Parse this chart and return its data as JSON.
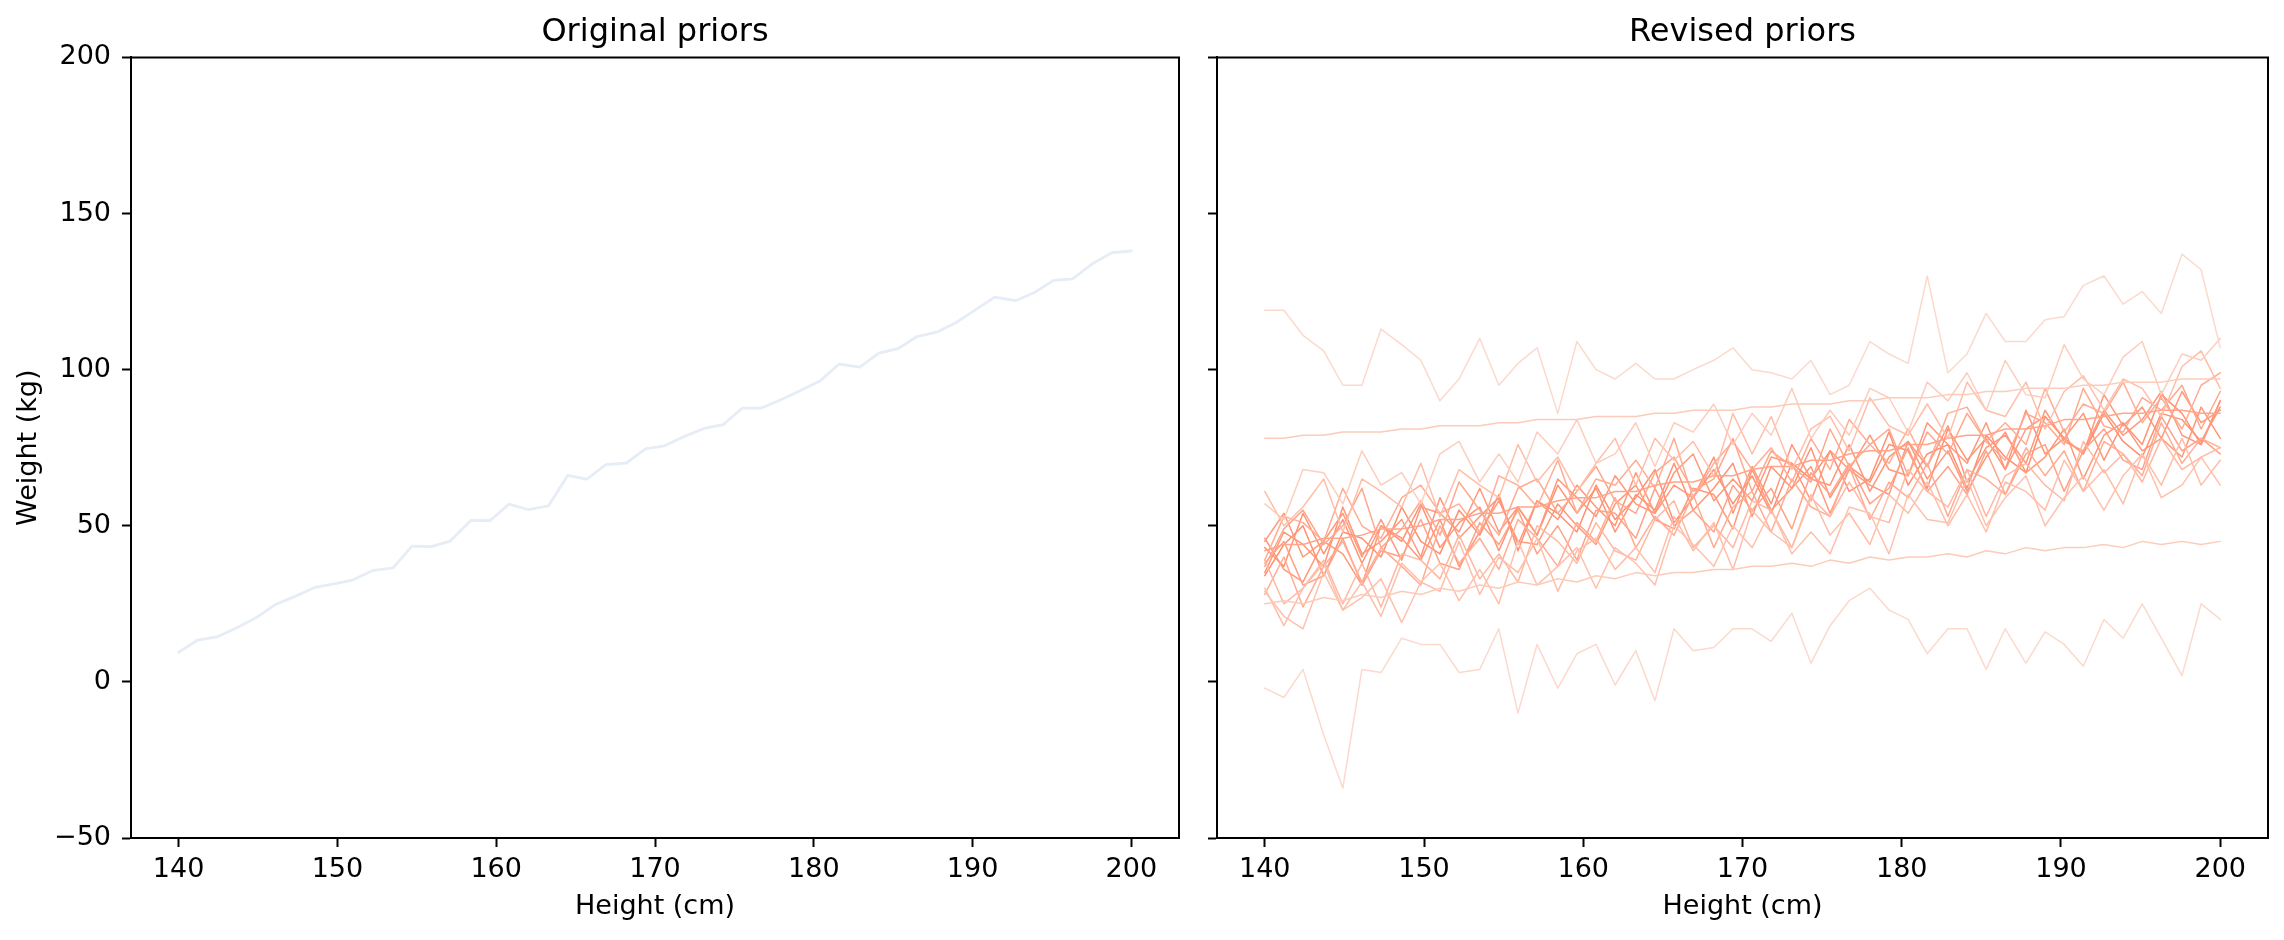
{
  "chart_data": [
    {
      "type": "line",
      "title": "Original priors",
      "xlabel": "Height (cm)",
      "ylabel": "Weight (kg)",
      "x": [
        140,
        141.2,
        142.4,
        143.7,
        144.9,
        146.1,
        147.3,
        148.6,
        149.8,
        151.0,
        152.2,
        153.5,
        154.7,
        155.9,
        157.1,
        158.4,
        159.6,
        160.8,
        162.0,
        163.3,
        164.5,
        165.7,
        166.9,
        168.2,
        169.4,
        170.6,
        171.8,
        173.1,
        174.3,
        175.5,
        176.7,
        178.0,
        179.2,
        180.4,
        181.6,
        182.9,
        184.1,
        185.3,
        186.5,
        187.8,
        189.0,
        190.2,
        191.4,
        192.7,
        193.9,
        195.1,
        196.3,
        197.6,
        198.8,
        200
      ],
      "xlim": [
        137,
        203
      ],
      "ylim": [
        -50,
        200
      ],
      "xticks": [
        140,
        150,
        160,
        170,
        180,
        190,
        200
      ],
      "yticks": [
        {
          "value": -50,
          "label": "−50"
        },
        0,
        50,
        100,
        150,
        200
      ],
      "series": [
        {
          "color": "#e6edf6",
          "values": [
            9.5,
            13.4,
            14.4,
            17.4,
            20.6,
            24.8,
            27.3,
            30.3,
            31.4,
            32.7,
            35.6,
            36.5,
            43.5,
            43.3,
            45.1,
            51.7,
            51.6,
            56.9,
            55.2,
            56.4,
            66.1,
            64.9,
            69.6,
            70.1,
            74.6,
            75.6,
            78.5,
            81.2,
            82.4,
            87.7,
            87.7,
            90.5,
            93.4,
            96.4,
            101.8,
            100.8,
            105.3,
            106.7,
            110.6,
            112.1,
            115.2,
            119.2,
            123.2,
            122.1,
            124.7,
            128.6,
            129.1,
            134.1,
            137.5,
            138.0
          ]
        }
      ]
    },
    {
      "type": "line",
      "title": "Revised priors",
      "xlabel": "Height (cm)",
      "x": [
        140,
        141.2,
        142.4,
        143.7,
        144.9,
        146.1,
        147.3,
        148.6,
        149.8,
        151.0,
        152.2,
        153.5,
        154.7,
        155.9,
        157.1,
        158.4,
        159.6,
        160.8,
        162.0,
        163.3,
        164.5,
        165.7,
        166.9,
        168.2,
        169.4,
        170.6,
        171.8,
        173.1,
        174.3,
        175.5,
        176.7,
        178.0,
        179.2,
        180.4,
        181.6,
        182.9,
        184.1,
        185.3,
        186.5,
        187.8,
        189.0,
        190.2,
        191.4,
        192.7,
        193.9,
        195.1,
        196.3,
        197.6,
        198.8,
        200
      ],
      "xlim": [
        137,
        203
      ],
      "ylim": [
        -50,
        200
      ],
      "xticks": [
        140,
        150,
        160,
        170,
        180,
        190,
        200
      ],
      "yticks": [
        -50,
        0,
        50,
        100,
        150,
        200
      ],
      "tick_labels": "x",
      "series": [
        {
          "color": "#fcd9cd",
          "values": [
            119,
            119,
            111,
            106,
            95,
            95,
            113,
            108,
            103,
            90,
            97,
            110,
            95,
            102,
            107,
            86,
            109,
            100,
            97,
            102,
            97,
            97,
            100,
            103,
            107,
            100,
            99,
            97,
            103,
            92,
            95,
            109,
            105,
            102,
            130,
            99,
            105,
            118,
            109,
            109,
            116,
            117,
            127,
            130,
            121,
            125,
            118,
            137,
            132,
            107
          ]
        },
        {
          "color": "#fcd9cd",
          "values": [
            -2,
            -5,
            4,
            -17,
            -34,
            4,
            3,
            14,
            12,
            12,
            3,
            4,
            17,
            -10,
            12,
            -2,
            9,
            12,
            -1,
            10,
            -6,
            17,
            10,
            11,
            17,
            17,
            13,
            22,
            6,
            18,
            26,
            30,
            23,
            20,
            9,
            17,
            17,
            4,
            17,
            6,
            16,
            12,
            5,
            20,
            14,
            25,
            14,
            2,
            25,
            20
          ]
        },
        {
          "color": "#fccbb9",
          "values": [
            78,
            78,
            79,
            79,
            80,
            80,
            80,
            81,
            81,
            82,
            82,
            82,
            83,
            83,
            84,
            84,
            84,
            85,
            85,
            85,
            86,
            86,
            87,
            87,
            87,
            88,
            88,
            89,
            89,
            89,
            90,
            90,
            91,
            91,
            91,
            92,
            92,
            93,
            93,
            94,
            94,
            94,
            95,
            95,
            96,
            96,
            96,
            97,
            97,
            97
          ]
        },
        {
          "color": "#fccbb9",
          "values": [
            25,
            26,
            25,
            27,
            26,
            28,
            27,
            29,
            28,
            30,
            29,
            31,
            30,
            32,
            31,
            33,
            32,
            34,
            33,
            35,
            34,
            35,
            35,
            36,
            36,
            37,
            37,
            38,
            37,
            39,
            38,
            40,
            39,
            40,
            40,
            41,
            40,
            42,
            41,
            43,
            42,
            43,
            43,
            44,
            43,
            45,
            44,
            45,
            44,
            45
          ]
        },
        {
          "color": "#ffc1ad",
          "values": [
            29,
            21,
            17,
            35,
            23,
            27,
            33,
            19,
            32,
            38,
            26,
            36,
            25,
            45,
            31,
            37,
            43,
            30,
            43,
            38,
            31,
            50,
            44,
            37,
            50,
            43,
            55,
            41,
            48,
            41,
            56,
            54,
            41,
            60,
            52,
            51,
            65,
            50,
            59,
            66,
            50,
            59,
            66,
            55,
            66,
            73,
            59,
            63,
            72,
            63
          ]
        },
        {
          "color": "#fdcdbd",
          "values": [
            57,
            52,
            68,
            67,
            57,
            74,
            63,
            67,
            57,
            73,
            77,
            64,
            73,
            64,
            80,
            73,
            84,
            70,
            73,
            83,
            69,
            83,
            80,
            89,
            76,
            86,
            79,
            94,
            78,
            87,
            79,
            94,
            91,
            80,
            96,
            90,
            99,
            87,
            103,
            92,
            91,
            108,
            97,
            92,
            104,
            109,
            92,
            105,
            103,
            110
          ]
        },
        {
          "color": "#ffbea9",
          "values": [
            30,
            18,
            30,
            38,
            23,
            32,
            21,
            38,
            32,
            29,
            45,
            28,
            40,
            35,
            46,
            29,
            42,
            46,
            36,
            43,
            35,
            53,
            42,
            51,
            36,
            55,
            48,
            43,
            60,
            47,
            54,
            44,
            60,
            54,
            64,
            50,
            60,
            48,
            64,
            61,
            55,
            71,
            61,
            68,
            57,
            73,
            63,
            78,
            63,
            71
          ]
        },
        {
          "color": "#ffbea9",
          "values": [
            61,
            50,
            56,
            65,
            48,
            65,
            61,
            56,
            70,
            53,
            68,
            63,
            59,
            76,
            64,
            72,
            61,
            70,
            78,
            63,
            78,
            71,
            77,
            66,
            86,
            73,
            85,
            68,
            81,
            85,
            74,
            91,
            82,
            79,
            89,
            78,
            96,
            87,
            85,
            96,
            81,
            93,
            98,
            87,
            97,
            94,
            85,
            101,
            106,
            94
          ]
        },
        {
          "color": "#ffb8a1",
          "values": [
            39,
            25,
            30,
            39,
            25,
            38,
            24,
            41,
            39,
            33,
            47,
            33,
            41,
            32,
            50,
            45,
            38,
            51,
            42,
            39,
            52,
            58,
            43,
            50,
            43,
            58,
            55,
            43,
            59,
            53,
            64,
            53,
            51,
            68,
            61,
            56,
            68,
            53,
            66,
            70,
            63,
            58,
            77,
            67,
            73,
            64,
            78,
            68,
            72,
            75
          ]
        },
        {
          "color": "#ffa589",
          "values": [
            42,
            44,
            44,
            46,
            46,
            47,
            49,
            49,
            50,
            52,
            52,
            54,
            54,
            56,
            56,
            58,
            59,
            59,
            61,
            61,
            63,
            64,
            64,
            66,
            66,
            68,
            69,
            69,
            71,
            71,
            73,
            74,
            74,
            76,
            76,
            78,
            79,
            79,
            81,
            81,
            82,
            84,
            84,
            85,
            86,
            86,
            87,
            87,
            86,
            86
          ]
        },
        {
          "color": "#ffad94",
          "values": [
            28,
            40,
            24,
            37,
            45,
            32,
            43,
            37,
            31,
            50,
            38,
            46,
            36,
            52,
            46,
            37,
            51,
            45,
            59,
            43,
            53,
            47,
            60,
            43,
            56,
            61,
            48,
            65,
            56,
            53,
            69,
            52,
            64,
            59,
            70,
            53,
            68,
            65,
            60,
            75,
            66,
            74,
            61,
            77,
            73,
            66,
            83,
            70,
            78,
            75
          ]
        },
        {
          "color": "#ffad94",
          "values": [
            39,
            53,
            51,
            45,
            62,
            50,
            46,
            59,
            63,
            54,
            57,
            48,
            66,
            63,
            56,
            71,
            54,
            65,
            63,
            71,
            62,
            78,
            59,
            70,
            77,
            68,
            75,
            64,
            78,
            68,
            84,
            76,
            70,
            81,
            69,
            86,
            88,
            77,
            83,
            76,
            94,
            80,
            89,
            86,
            96,
            83,
            91,
            81,
            95,
            99
          ]
        },
        {
          "color": "#ffa88e",
          "values": [
            37,
            49,
            55,
            44,
            50,
            62,
            43,
            49,
            58,
            47,
            64,
            55,
            47,
            62,
            65,
            54,
            61,
            69,
            58,
            54,
            67,
            72,
            61,
            65,
            78,
            61,
            74,
            69,
            64,
            81,
            69,
            76,
            81,
            66,
            80,
            73,
            86,
            77,
            71,
            86,
            83,
            76,
            94,
            82,
            80,
            91,
            87,
            95,
            81,
            93
          ]
        },
        {
          "color": "#ffa287",
          "values": [
            38,
            45,
            31,
            34,
            46,
            31,
            42,
            40,
            52,
            38,
            36,
            51,
            44,
            55,
            41,
            50,
            39,
            55,
            54,
            46,
            62,
            50,
            55,
            48,
            63,
            55,
            62,
            49,
            67,
            60,
            70,
            57,
            62,
            75,
            61,
            69,
            60,
            74,
            60,
            73,
            76,
            61,
            74,
            81,
            71,
            68,
            85,
            74,
            78,
            73
          ]
        },
        {
          "color": "#ff997a",
          "values": [
            46,
            36,
            32,
            45,
            41,
            31,
            50,
            46,
            39,
            52,
            37,
            48,
            58,
            45,
            44,
            57,
            50,
            44,
            57,
            63,
            52,
            49,
            62,
            60,
            49,
            68,
            55,
            62,
            69,
            54,
            68,
            63,
            60,
            77,
            65,
            74,
            61,
            72,
            80,
            67,
            72,
            81,
            65,
            79,
            83,
            74,
            78,
            72,
            88,
            78
          ]
        },
        {
          "color": "#ff997a",
          "values": [
            45,
            54,
            40,
            45,
            54,
            40,
            52,
            39,
            56,
            54,
            48,
            62,
            48,
            56,
            47,
            65,
            59,
            53,
            66,
            57,
            54,
            67,
            73,
            58,
            65,
            58,
            72,
            70,
            58,
            74,
            68,
            79,
            68,
            66,
            83,
            76,
            70,
            83,
            68,
            81,
            85,
            78,
            73,
            92,
            82,
            88,
            78,
            93,
            83,
            87
          ]
        },
        {
          "color": "#ff987b",
          "values": [
            35,
            48,
            44,
            37,
            56,
            41,
            45,
            52,
            40,
            59,
            46,
            53,
            59,
            44,
            58,
            52,
            63,
            56,
            50,
            67,
            54,
            63,
            59,
            72,
            54,
            69,
            57,
            76,
            65,
            63,
            76,
            61,
            72,
            77,
            69,
            82,
            64,
            75,
            79,
            70,
            87,
            77,
            74,
            87,
            79,
            84,
            93,
            79,
            76,
            90
          ]
        },
        {
          "color": "#ff9475",
          "values": [
            43,
            37,
            54,
            41,
            52,
            38,
            50,
            45,
            57,
            43,
            51,
            56,
            42,
            56,
            47,
            63,
            54,
            62,
            48,
            60,
            55,
            70,
            55,
            62,
            70,
            53,
            69,
            62,
            75,
            59,
            69,
            64,
            76,
            74,
            62,
            81,
            71,
            78,
            68,
            87,
            73,
            78,
            86,
            71,
            83,
            76,
            92,
            86,
            76,
            90
          ]
        },
        {
          "color": "#ff906f",
          "values": [
            34,
            44,
            50,
            34,
            48,
            46,
            40,
            56,
            45,
            41,
            55,
            47,
            60,
            42,
            58,
            54,
            48,
            63,
            52,
            59,
            68,
            51,
            59,
            68,
            57,
            66,
            54,
            70,
            65,
            74,
            61,
            65,
            80,
            63,
            73,
            76,
            62,
            79,
            72,
            67,
            85,
            78,
            73,
            86,
            77,
            72,
            86,
            84,
            77,
            88
          ]
        }
      ]
    }
  ]
}
